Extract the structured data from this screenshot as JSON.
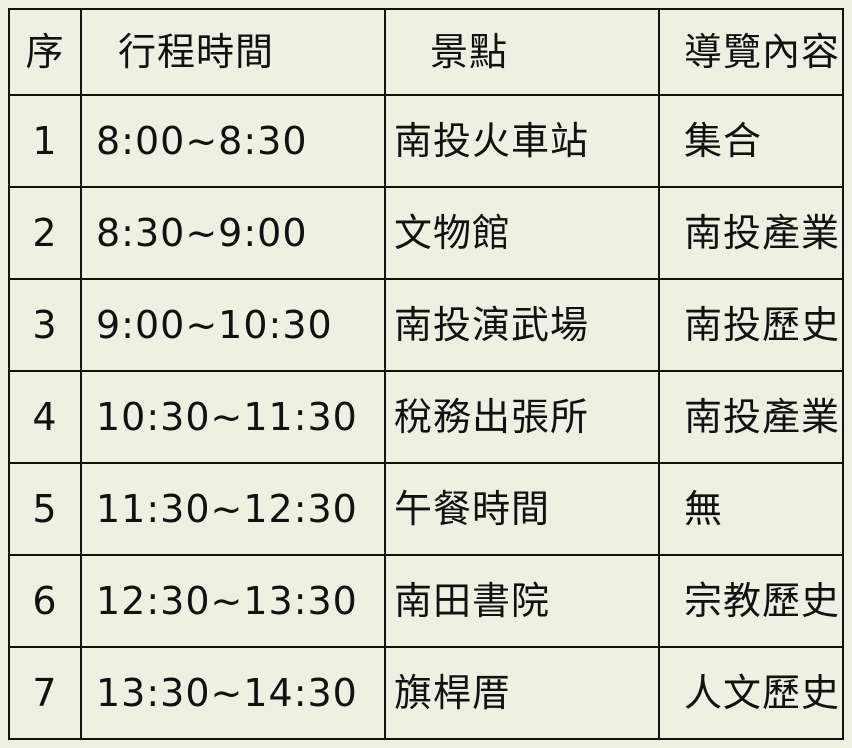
{
  "table": {
    "headers": [
      "序",
      "行程時間",
      "景點",
      "導覽內容"
    ],
    "rows": [
      [
        "1",
        "8:00~8:30",
        "南投火車站",
        "集合"
      ],
      [
        "2",
        "8:30~9:00",
        "文物館",
        "南投產業史"
      ],
      [
        "3",
        "9:00~10:30",
        "南投演武場",
        "南投歷史"
      ],
      [
        "4",
        "10:30~11:30",
        "稅務出張所",
        "南投產業史"
      ],
      [
        "5",
        "11:30~12:30",
        "午餐時間",
        "無"
      ],
      [
        "6",
        "12:30~13:30",
        "南田書院",
        "宗教歷史"
      ],
      [
        "7",
        "13:30~14:30",
        "旗桿厝",
        "人文歷史"
      ]
    ]
  }
}
